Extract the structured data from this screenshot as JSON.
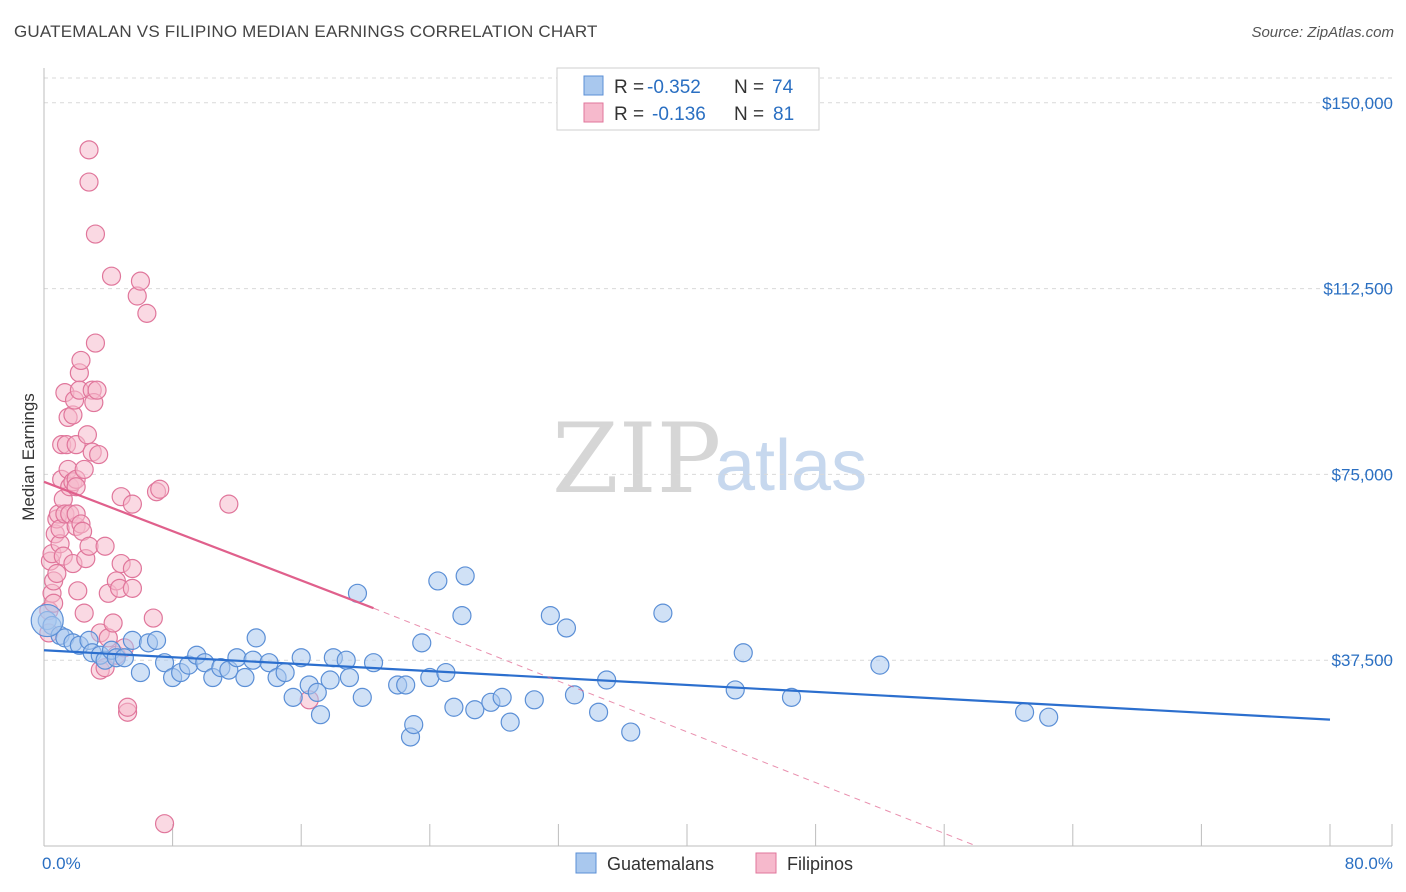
{
  "header": {
    "title": "GUATEMALAN VS FILIPINO MEDIAN EARNINGS CORRELATION CHART",
    "source": "Source: ZipAtlas.com"
  },
  "watermark": {
    "zip": "ZIP",
    "atlas": "atlas"
  },
  "colors": {
    "guatemalan_fill": "#a9c8ee",
    "guatemalan_stroke": "#5b8fd6",
    "guatemalan_line": "#2c6fce",
    "filipino_fill": "#f6b9cc",
    "filipino_stroke": "#e0769b",
    "filipino_line": "#e0608c",
    "axis_text": "#2a6fc2",
    "grid": "#d9d9d9"
  },
  "legend": {
    "rows": [
      {
        "r_label": "R =",
        "r_value": "-0.352",
        "n_label": "N =",
        "n_value": "74"
      },
      {
        "r_label": "R =",
        "r_value": "-0.136",
        "n_label": "N =",
        "n_value": "81"
      }
    ]
  },
  "chart_data": {
    "type": "scatter",
    "title": "GUATEMALAN VS FILIPINO MEDIAN EARNINGS CORRELATION CHART",
    "xlabel": "",
    "ylabel": "Median Earnings",
    "xlim": [
      0,
      80
    ],
    "ylim": [
      0,
      155000
    ],
    "x_tick_labels": [
      "0.0%",
      "80.0%"
    ],
    "y_ticks": [
      37500,
      75000,
      112500,
      150000
    ],
    "y_tick_labels": [
      "$37,500",
      "$75,000",
      "$112,500",
      "$150,000"
    ],
    "grid": true,
    "series": [
      {
        "name": "Guatemalans",
        "r": -0.352,
        "n": 74,
        "trend": {
          "x": [
            0,
            80
          ],
          "y": [
            39500,
            25500
          ]
        },
        "points": [
          [
            0.2,
            45500
          ],
          [
            0.5,
            44500
          ],
          [
            1.0,
            42500
          ],
          [
            1.3,
            42000
          ],
          [
            1.8,
            41000
          ],
          [
            2.2,
            40500
          ],
          [
            2.8,
            41500
          ],
          [
            3.0,
            39000
          ],
          [
            3.5,
            38500
          ],
          [
            3.8,
            37500
          ],
          [
            4.2,
            39500
          ],
          [
            4.5,
            38000
          ],
          [
            5.0,
            38000
          ],
          [
            5.5,
            41500
          ],
          [
            6.0,
            35000
          ],
          [
            6.5,
            41000
          ],
          [
            7.0,
            41500
          ],
          [
            7.5,
            37000
          ],
          [
            8.0,
            34000
          ],
          [
            8.5,
            35000
          ],
          [
            9.0,
            36500
          ],
          [
            9.5,
            38500
          ],
          [
            10.0,
            37000
          ],
          [
            10.5,
            34000
          ],
          [
            11.0,
            36000
          ],
          [
            11.5,
            35500
          ],
          [
            12.0,
            38000
          ],
          [
            12.5,
            34000
          ],
          [
            13.0,
            37500
          ],
          [
            13.2,
            42000
          ],
          [
            14.0,
            37000
          ],
          [
            14.5,
            34000
          ],
          [
            15.0,
            35000
          ],
          [
            15.5,
            30000
          ],
          [
            16.0,
            38000
          ],
          [
            16.5,
            32500
          ],
          [
            17.0,
            31000
          ],
          [
            17.2,
            26500
          ],
          [
            17.8,
            33500
          ],
          [
            18.0,
            38000
          ],
          [
            18.8,
            37500
          ],
          [
            19.0,
            34000
          ],
          [
            19.5,
            51000
          ],
          [
            19.8,
            30000
          ],
          [
            20.5,
            37000
          ],
          [
            22.0,
            32500
          ],
          [
            22.5,
            32500
          ],
          [
            22.8,
            22000
          ],
          [
            23.0,
            24500
          ],
          [
            23.5,
            41000
          ],
          [
            24.0,
            34000
          ],
          [
            24.5,
            53500
          ],
          [
            25.0,
            35000
          ],
          [
            25.5,
            28000
          ],
          [
            26.0,
            46500
          ],
          [
            26.2,
            54500
          ],
          [
            26.8,
            27500
          ],
          [
            27.8,
            29000
          ],
          [
            28.5,
            30000
          ],
          [
            29.0,
            25000
          ],
          [
            30.5,
            29500
          ],
          [
            31.5,
            46500
          ],
          [
            32.5,
            44000
          ],
          [
            33.0,
            30500
          ],
          [
            34.5,
            27000
          ],
          [
            35.0,
            33500
          ],
          [
            36.5,
            23000
          ],
          [
            38.5,
            47000
          ],
          [
            43.0,
            31500
          ],
          [
            43.5,
            39000
          ],
          [
            46.5,
            30000
          ],
          [
            52.0,
            36500
          ],
          [
            61.0,
            27000
          ],
          [
            62.5,
            26000
          ]
        ]
      },
      {
        "name": "Filipinos",
        "r": -0.136,
        "n": 81,
        "trend": {
          "x": [
            0,
            20.5
          ],
          "y": [
            73500,
            48000
          ]
        },
        "trend_extended": {
          "x": [
            20.5,
            58
          ],
          "y": [
            48000,
            0
          ]
        },
        "points": [
          [
            0.3,
            47500
          ],
          [
            0.3,
            43000
          ],
          [
            0.4,
            57500
          ],
          [
            0.5,
            59000
          ],
          [
            0.5,
            51000
          ],
          [
            0.6,
            53500
          ],
          [
            0.6,
            49000
          ],
          [
            0.7,
            63000
          ],
          [
            0.8,
            66000
          ],
          [
            0.8,
            55000
          ],
          [
            0.9,
            67000
          ],
          [
            1.0,
            61000
          ],
          [
            1.0,
            64000
          ],
          [
            1.1,
            74000
          ],
          [
            1.1,
            81000
          ],
          [
            1.2,
            70000
          ],
          [
            1.2,
            58500
          ],
          [
            1.3,
            91500
          ],
          [
            1.3,
            67000
          ],
          [
            1.4,
            81000
          ],
          [
            1.5,
            86500
          ],
          [
            1.5,
            76000
          ],
          [
            1.6,
            72500
          ],
          [
            1.6,
            67000
          ],
          [
            1.8,
            87000
          ],
          [
            1.8,
            73500
          ],
          [
            1.8,
            57000
          ],
          [
            1.9,
            90000
          ],
          [
            2.0,
            64500
          ],
          [
            2.0,
            74000
          ],
          [
            2.0,
            81000
          ],
          [
            2.0,
            72500
          ],
          [
            2.0,
            67000
          ],
          [
            2.1,
            51500
          ],
          [
            2.2,
            95500
          ],
          [
            2.2,
            92000
          ],
          [
            2.3,
            98000
          ],
          [
            2.3,
            65000
          ],
          [
            2.4,
            63500
          ],
          [
            2.5,
            47000
          ],
          [
            2.5,
            76000
          ],
          [
            2.6,
            58000
          ],
          [
            2.7,
            83000
          ],
          [
            2.8,
            60500
          ],
          [
            2.8,
            134000
          ],
          [
            2.8,
            140500
          ],
          [
            3.0,
            79500
          ],
          [
            3.0,
            92000
          ],
          [
            3.1,
            89500
          ],
          [
            3.2,
            123500
          ],
          [
            3.2,
            101500
          ],
          [
            3.3,
            92000
          ],
          [
            3.4,
            79000
          ],
          [
            3.5,
            43000
          ],
          [
            3.5,
            35500
          ],
          [
            3.8,
            36000
          ],
          [
            3.8,
            60500
          ],
          [
            4.0,
            51000
          ],
          [
            4.0,
            42000
          ],
          [
            4.2,
            115000
          ],
          [
            4.3,
            45000
          ],
          [
            4.5,
            53500
          ],
          [
            4.5,
            38500
          ],
          [
            4.7,
            52000
          ],
          [
            4.8,
            70500
          ],
          [
            4.8,
            57000
          ],
          [
            5.0,
            40000
          ],
          [
            5.2,
            27000
          ],
          [
            5.2,
            28000
          ],
          [
            5.5,
            69000
          ],
          [
            5.5,
            52000
          ],
          [
            5.5,
            56000
          ],
          [
            5.8,
            111000
          ],
          [
            6.0,
            114000
          ],
          [
            6.4,
            107500
          ],
          [
            6.8,
            46000
          ],
          [
            7.0,
            71500
          ],
          [
            7.2,
            72000
          ],
          [
            7.5,
            4500
          ],
          [
            11.5,
            69000
          ],
          [
            16.5,
            29500
          ]
        ]
      }
    ]
  },
  "bottom_legend": [
    "Guatemalans",
    "Filipinos"
  ]
}
